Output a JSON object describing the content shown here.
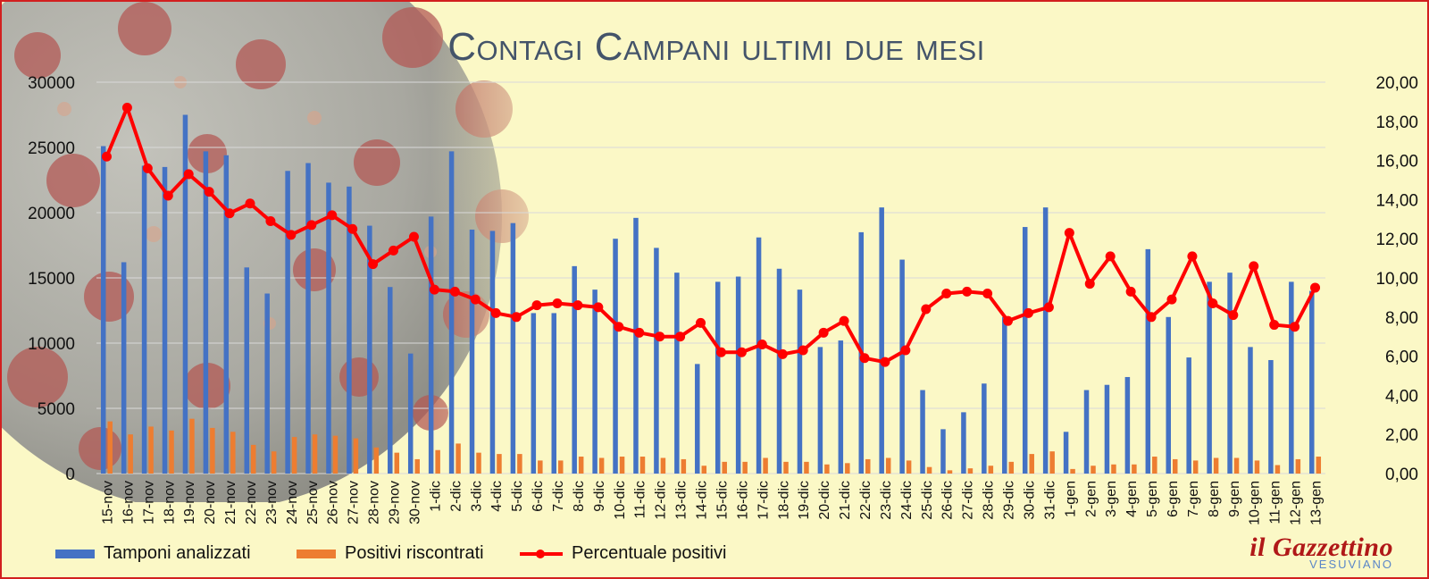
{
  "chart_data": {
    "type": "bar",
    "title": "Contagi Campani ultimi due mesi",
    "categories": [
      "15-nov",
      "16-nov",
      "17-nov",
      "18-nov",
      "19-nov",
      "20-nov",
      "21-nov",
      "22-nov",
      "23-nov",
      "24-nov",
      "25-nov",
      "26-nov",
      "27-nov",
      "28-nov",
      "29-nov",
      "30-nov",
      "1-dic",
      "2-dic",
      "3-dic",
      "4-dic",
      "5-dic",
      "6-dic",
      "7-dic",
      "8-dic",
      "9-dic",
      "10-dic",
      "11-dic",
      "12-dic",
      "13-dic",
      "14-dic",
      "15-dic",
      "16-dic",
      "17-dic",
      "18-dic",
      "19-dic",
      "20-dic",
      "21-dic",
      "22-dic",
      "23-dic",
      "24-dic",
      "25-dic",
      "26-dic",
      "27-dic",
      "28-dic",
      "29-dic",
      "30-dic",
      "31-dic",
      "1-gen",
      "2-gen",
      "3-gen",
      "4-gen",
      "5-gen",
      "6-gen",
      "7-gen",
      "8-gen",
      "9-gen",
      "10-gen",
      "11-gen",
      "12-gen",
      "13-gen"
    ],
    "series": [
      {
        "name": "Tamponi analizzati",
        "axis": "left",
        "kind": "bar",
        "color": "#4472c4",
        "values": [
          25100,
          16200,
          23600,
          23500,
          27500,
          24700,
          24400,
          15800,
          13800,
          23200,
          23800,
          22300,
          22000,
          19000,
          14300,
          9200,
          19700,
          24700,
          18700,
          18600,
          19200,
          12300,
          12300,
          15900,
          14100,
          18000,
          19600,
          17300,
          15400,
          8400,
          14700,
          15100,
          18100,
          15700,
          14100,
          9700,
          10200,
          18500,
          20400,
          16400,
          6400,
          3400,
          4700,
          6900,
          12000,
          18900,
          20400,
          3200,
          6400,
          6800,
          7400,
          17200,
          12000,
          8900,
          14700,
          15400,
          9700,
          8700,
          14700,
          14000
        ]
      },
      {
        "name": "Positivi riscontrati",
        "axis": "left",
        "kind": "bar",
        "color": "#ed7d31",
        "values": [
          4000,
          3000,
          3600,
          3300,
          4200,
          3500,
          3200,
          2200,
          1700,
          2800,
          3000,
          2900,
          2700,
          2000,
          1600,
          1100,
          1800,
          2300,
          1600,
          1500,
          1500,
          1000,
          1000,
          1300,
          1200,
          1300,
          1300,
          1200,
          1100,
          600,
          900,
          900,
          1200,
          900,
          900,
          700,
          800,
          1100,
          1200,
          1000,
          500,
          250,
          400,
          600,
          900,
          1500,
          1700,
          350,
          600,
          700,
          700,
          1300,
          1100,
          1000,
          1200,
          1200,
          1000,
          650,
          1100,
          1300
        ]
      },
      {
        "name": "Percentuale positivi",
        "axis": "right",
        "kind": "line",
        "color": "#ff0000",
        "values": [
          16.2,
          18.7,
          15.6,
          14.2,
          15.3,
          14.4,
          13.3,
          13.8,
          12.9,
          12.2,
          12.7,
          13.2,
          12.5,
          10.7,
          11.4,
          12.1,
          9.4,
          9.3,
          8.9,
          8.2,
          8.0,
          8.6,
          8.7,
          8.6,
          8.5,
          7.5,
          7.2,
          7.0,
          7.0,
          7.7,
          6.2,
          6.2,
          6.6,
          6.1,
          6.3,
          7.2,
          7.8,
          5.9,
          5.7,
          6.3,
          8.4,
          9.2,
          9.3,
          9.2,
          7.8,
          8.2,
          8.5,
          12.3,
          9.7,
          11.1,
          9.3,
          8.0,
          8.9,
          11.1,
          8.7,
          8.1,
          10.6,
          7.6,
          7.5,
          9.5
        ]
      }
    ],
    "ylim_left": [
      0,
      30000
    ],
    "ylim_right": [
      0,
      20
    ],
    "yticks_left": [
      "0",
      "5000",
      "10000",
      "15000",
      "20000",
      "25000",
      "30000"
    ],
    "yticks_right": [
      "0,00",
      "2,00",
      "4,00",
      "6,00",
      "8,00",
      "10,00",
      "12,00",
      "14,00",
      "16,00",
      "18,00",
      "20,00"
    ],
    "grid": true,
    "legend_position": "bottom-left"
  },
  "logo": {
    "main": "il Gazzettino",
    "sub": "VESUVIANO"
  },
  "colors": {
    "background": "#fbf8c6",
    "frame": "#d21f1f",
    "title": "#44546a"
  }
}
